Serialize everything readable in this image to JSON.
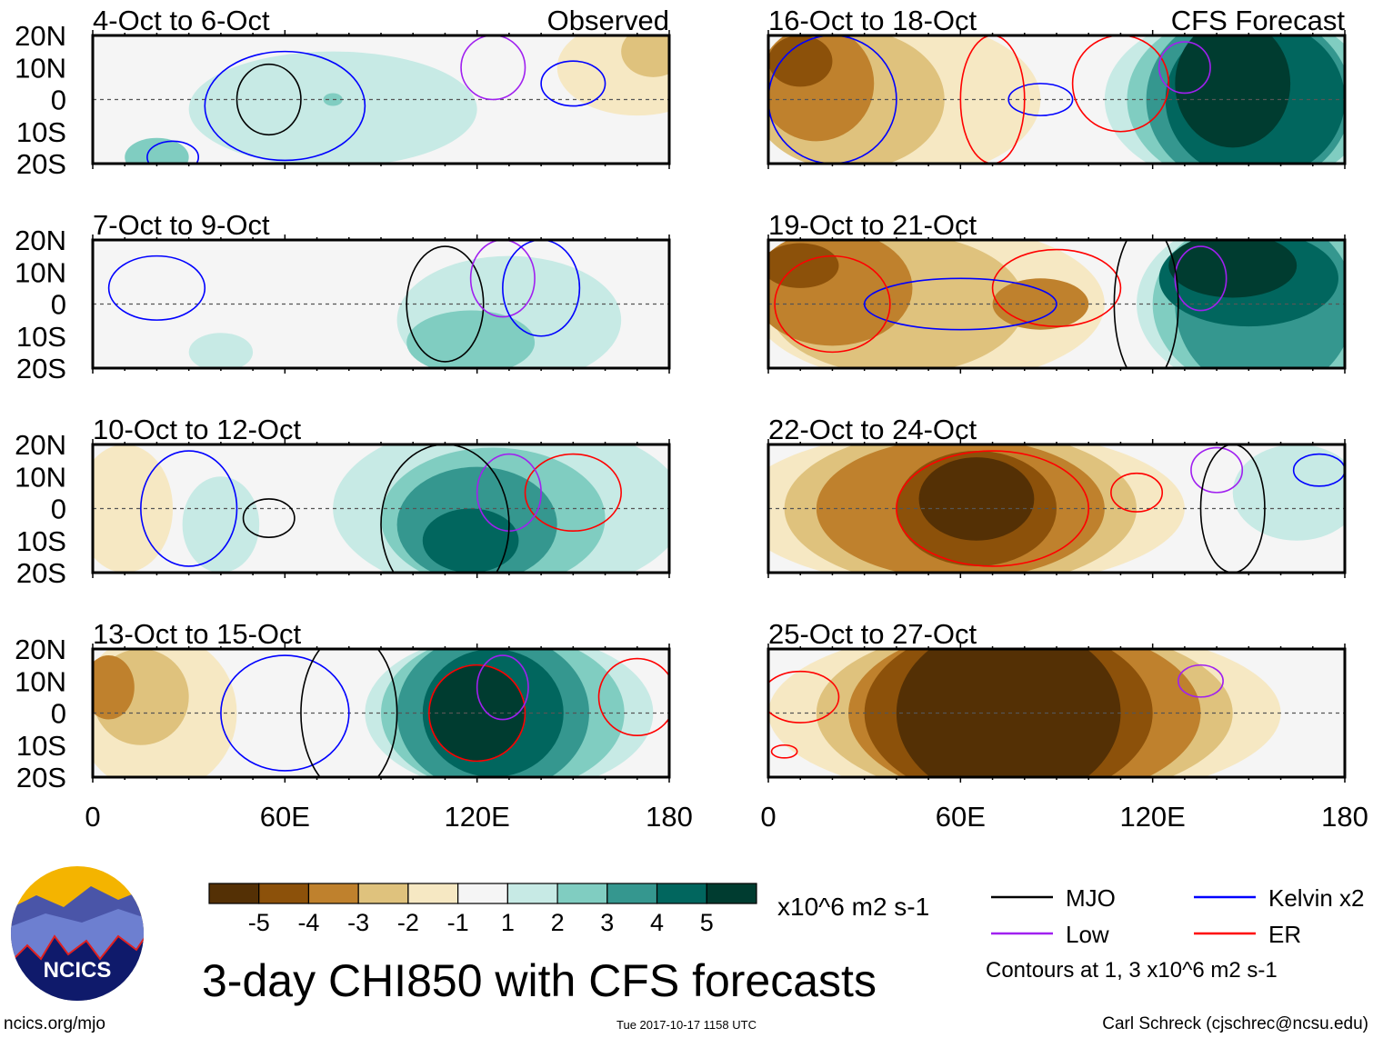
{
  "chart_data": {
    "type": "heatmap",
    "title": "3-day CHI850 with CFS forecasts",
    "units": "x10^6 m2 s-1",
    "x_ticks": [
      "0",
      "60E",
      "120E",
      "180"
    ],
    "y_ticks": [
      "20N",
      "10N",
      "0",
      "10S",
      "20S"
    ],
    "xlim": [
      0,
      180
    ],
    "ylim": [
      -20,
      20
    ],
    "observed_label": "Observed",
    "forecast_label": "CFS Forecast",
    "colorbar": {
      "levels": [
        "-5",
        "-4",
        "-3",
        "-2",
        "-1",
        "1",
        "2",
        "3",
        "4",
        "5"
      ],
      "colors": [
        "#543005",
        "#8c510a",
        "#bf812d",
        "#dfc27d",
        "#f6e8c3",
        "#f5f5f5",
        "#c7eae5",
        "#80cdc1",
        "#35978f",
        "#01665e",
        "#003c30"
      ]
    },
    "legend": {
      "items": [
        {
          "label": "MJO",
          "color": "#000000"
        },
        {
          "label": "Kelvin x2",
          "color": "#0000ff"
        },
        {
          "label": "Low",
          "color": "#a020f0"
        },
        {
          "label": "ER",
          "color": "#ff0000"
        }
      ],
      "note": "Contours at 1, 3 x10^6 m2 s-1"
    },
    "panels": [
      {
        "title": "4-Oct to 6-Oct",
        "tag": "observed",
        "blobs": [
          [
            75,
            -3,
            45,
            18,
            1
          ],
          [
            170,
            10,
            25,
            15,
            -1
          ],
          [
            175,
            15,
            10,
            8,
            -2
          ],
          [
            75,
            0,
            3,
            2,
            2
          ],
          [
            20,
            -18,
            10,
            6,
            2
          ]
        ],
        "contours": [
          [
            "MJO",
            55,
            0,
            10,
            11
          ],
          [
            "Kelvin x2",
            60,
            -2,
            25,
            17
          ],
          [
            "Low",
            125,
            10,
            10,
            10
          ],
          [
            "Kelvin x2",
            150,
            5,
            10,
            7
          ],
          [
            "Kelvin x2",
            25,
            -18,
            8,
            5
          ]
        ]
      },
      {
        "title": "7-Oct to 9-Oct",
        "tag": "observed",
        "blobs": [
          [
            130,
            -5,
            35,
            20,
            1
          ],
          [
            118,
            -12,
            20,
            10,
            2
          ],
          [
            40,
            -15,
            10,
            6,
            1
          ]
        ],
        "contours": [
          [
            "MJO",
            110,
            0,
            12,
            18
          ],
          [
            "Low",
            128,
            8,
            10,
            12
          ],
          [
            "Kelvin x2",
            20,
            5,
            15,
            10
          ],
          [
            "Kelvin x2",
            140,
            5,
            12,
            15
          ]
        ]
      },
      {
        "title": "10-Oct to 12-Oct",
        "tag": "observed",
        "blobs": [
          [
            130,
            0,
            55,
            28,
            1
          ],
          [
            125,
            -3,
            35,
            22,
            2
          ],
          [
            120,
            -5,
            25,
            18,
            3
          ],
          [
            118,
            -10,
            15,
            10,
            4
          ],
          [
            10,
            0,
            15,
            20,
            -1
          ],
          [
            40,
            -5,
            12,
            15,
            1
          ]
        ],
        "contours": [
          [
            "ER",
            150,
            5,
            15,
            12
          ],
          [
            "Low",
            130,
            5,
            10,
            12
          ],
          [
            "MJO",
            55,
            -3,
            8,
            6
          ],
          [
            "Kelvin x2",
            30,
            0,
            15,
            18
          ],
          [
            "MJO",
            110,
            -5,
            20,
            25
          ]
        ]
      },
      {
        "title": "13-Oct to 15-Oct",
        "tag": "observed",
        "blobs": [
          [
            20,
            0,
            25,
            25,
            -1
          ],
          [
            15,
            5,
            15,
            15,
            -2
          ],
          [
            5,
            8,
            8,
            10,
            -3
          ],
          [
            130,
            0,
            45,
            25,
            1
          ],
          [
            128,
            0,
            38,
            25,
            2
          ],
          [
            125,
            0,
            30,
            25,
            3
          ],
          [
            125,
            0,
            22,
            20,
            4
          ],
          [
            120,
            0,
            15,
            15,
            5
          ]
        ],
        "contours": [
          [
            "Kelvin x2",
            60,
            0,
            20,
            18
          ],
          [
            "ER",
            120,
            0,
            15,
            15
          ],
          [
            "Low",
            128,
            8,
            8,
            10
          ],
          [
            "MJO",
            80,
            0,
            15,
            25
          ],
          [
            "ER",
            170,
            5,
            12,
            12
          ]
        ]
      },
      {
        "title": "16-Oct to 18-Oct",
        "tag": "forecast",
        "blobs": [
          [
            40,
            0,
            45,
            25,
            -1
          ],
          [
            25,
            0,
            30,
            22,
            -2
          ],
          [
            15,
            5,
            18,
            18,
            -3
          ],
          [
            10,
            12,
            10,
            8,
            -4
          ],
          [
            150,
            0,
            45,
            28,
            1
          ],
          [
            150,
            0,
            38,
            28,
            2
          ],
          [
            150,
            0,
            32,
            28,
            3
          ],
          [
            152,
            0,
            28,
            25,
            4
          ],
          [
            145,
            5,
            18,
            20,
            5
          ]
        ],
        "contours": [
          [
            "ER",
            110,
            5,
            15,
            15
          ],
          [
            "Low",
            130,
            10,
            8,
            8
          ],
          [
            "Kelvin x2",
            85,
            0,
            10,
            5
          ],
          [
            "Kelvin x2",
            20,
            0,
            20,
            20
          ],
          [
            "ER",
            70,
            0,
            10,
            20
          ]
        ]
      },
      {
        "title": "19-Oct to 21-Oct",
        "tag": "forecast",
        "blobs": [
          [
            50,
            0,
            55,
            25,
            -1
          ],
          [
            40,
            0,
            40,
            22,
            -2
          ],
          [
            20,
            5,
            25,
            18,
            -3
          ],
          [
            85,
            0,
            15,
            8,
            -3
          ],
          [
            10,
            12,
            12,
            7,
            -4
          ],
          [
            155,
            0,
            40,
            28,
            1
          ],
          [
            155,
            0,
            35,
            28,
            2
          ],
          [
            155,
            0,
            28,
            28,
            3
          ],
          [
            150,
            8,
            28,
            15,
            4
          ],
          [
            145,
            12,
            20,
            10,
            5
          ]
        ],
        "contours": [
          [
            "ER",
            90,
            5,
            20,
            12
          ],
          [
            "Low",
            135,
            8,
            8,
            10
          ],
          [
            "Kelvin x2",
            60,
            0,
            30,
            8
          ],
          [
            "MJO",
            118,
            0,
            10,
            25
          ],
          [
            "ER",
            20,
            0,
            18,
            15
          ]
        ]
      },
      {
        "title": "22-Oct to 24-Oct",
        "tag": "forecast",
        "blobs": [
          [
            60,
            0,
            70,
            25,
            -1
          ],
          [
            60,
            0,
            55,
            25,
            -2
          ],
          [
            60,
            0,
            45,
            22,
            -3
          ],
          [
            65,
            0,
            25,
            18,
            -4
          ],
          [
            65,
            3,
            18,
            13,
            -5
          ],
          [
            165,
            5,
            20,
            15,
            1
          ]
        ],
        "contours": [
          [
            "ER",
            70,
            0,
            30,
            18
          ],
          [
            "Low",
            140,
            12,
            8,
            7
          ],
          [
            "MJO",
            145,
            0,
            10,
            20
          ],
          [
            "ER",
            115,
            5,
            8,
            6
          ],
          [
            "Kelvin x2",
            172,
            12,
            8,
            5
          ]
        ]
      },
      {
        "title": "25-Oct to 27-Oct",
        "tag": "forecast",
        "blobs": [
          [
            80,
            0,
            80,
            28,
            -1
          ],
          [
            80,
            0,
            65,
            28,
            -2
          ],
          [
            80,
            0,
            55,
            28,
            -3
          ],
          [
            75,
            0,
            45,
            28,
            -4
          ],
          [
            75,
            0,
            35,
            28,
            -5
          ]
        ],
        "contours": [
          [
            "Low",
            135,
            10,
            7,
            5
          ],
          [
            "ER",
            10,
            5,
            12,
            8
          ],
          [
            "ER",
            5,
            -12,
            4,
            2
          ]
        ]
      }
    ]
  },
  "footer": {
    "left": "ncics.org/mjo",
    "center": "Tue 2017-10-17 1158 UTC",
    "right": "Carl Schreck (cjschrec@ncsu.edu)",
    "logo_text": "NCICS"
  }
}
